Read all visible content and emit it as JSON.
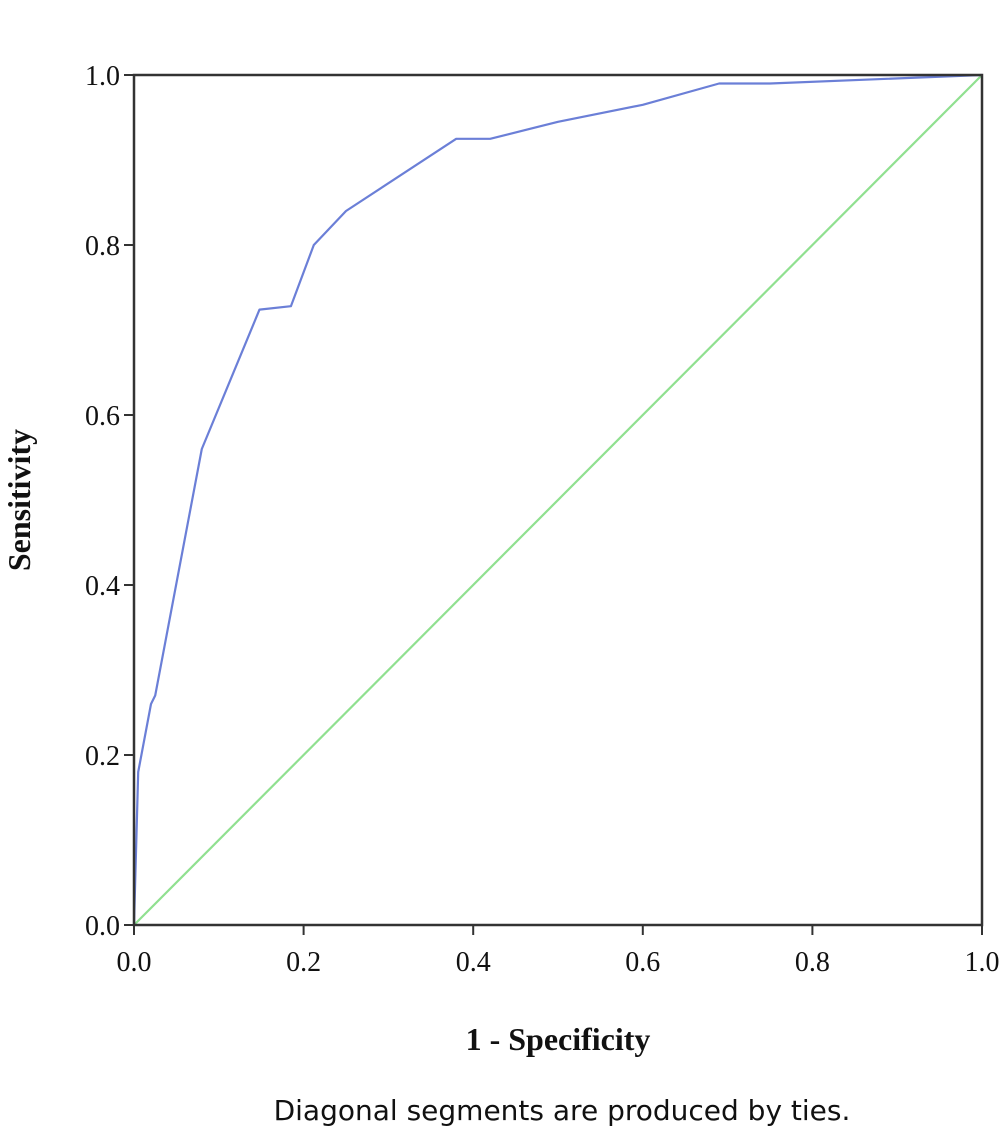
{
  "chart_data": {
    "type": "line",
    "title": "",
    "xlabel": "1 - Specificity",
    "ylabel": "Sensitivity",
    "footnote": "Diagonal segments are produced by ties.",
    "xlim": [
      0,
      1
    ],
    "ylim": [
      0,
      1
    ],
    "x_ticks": [
      "0.0",
      "0.2",
      "0.4",
      "0.6",
      "0.8",
      "1.0"
    ],
    "y_ticks": [
      "0.0",
      "0.2",
      "0.4",
      "0.6",
      "0.8",
      "1.0"
    ],
    "grid": false,
    "legend": "none",
    "colors": {
      "roc": "#6b7fd7",
      "reference": "#90e090",
      "axis": "#333333"
    },
    "series": [
      {
        "key": "roc",
        "points": [
          [
            0.0,
            0.0
          ],
          [
            0.005,
            0.18
          ],
          [
            0.02,
            0.26
          ],
          [
            0.025,
            0.27
          ],
          [
            0.08,
            0.56
          ],
          [
            0.148,
            0.724
          ],
          [
            0.185,
            0.728
          ],
          [
            0.212,
            0.8
          ],
          [
            0.25,
            0.84
          ],
          [
            0.38,
            0.925
          ],
          [
            0.42,
            0.925
          ],
          [
            0.5,
            0.945
          ],
          [
            0.6,
            0.965
          ],
          [
            0.69,
            0.99
          ],
          [
            0.75,
            0.99
          ],
          [
            1.0,
            1.0
          ]
        ]
      },
      {
        "key": "reference",
        "points": [
          [
            0.0,
            0.0
          ],
          [
            1.0,
            1.0
          ]
        ]
      }
    ]
  }
}
